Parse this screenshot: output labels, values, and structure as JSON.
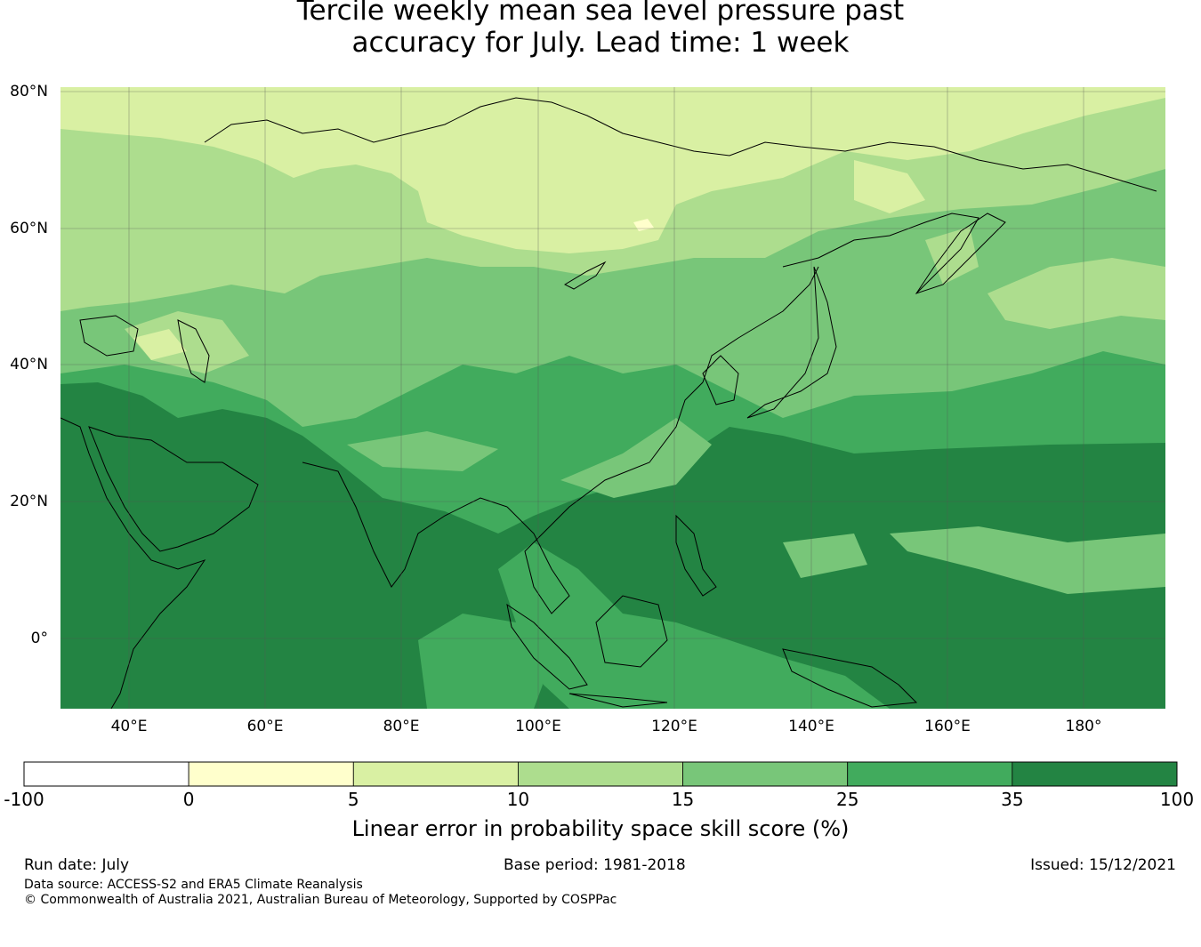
{
  "title": {
    "line1": "Tercile weekly mean sea level pressure past",
    "line2": "accuracy for July. Lead time: 1 week"
  },
  "map": {
    "lat_labels": [
      "80°N",
      "60°N",
      "40°N",
      "20°N",
      "0°"
    ],
    "lon_labels": [
      "40°E",
      "60°E",
      "80°E",
      "100°E",
      "120°E",
      "140°E",
      "160°E",
      "180°"
    ],
    "region": "Asia",
    "lon_range_deg": [
      30,
      192
    ],
    "lat_range_deg": [
      -10,
      80
    ]
  },
  "colorbar": {
    "title": "Linear error in probability space skill score (%)",
    "ticks": [
      "-100",
      "0",
      "5",
      "10",
      "15",
      "25",
      "35",
      "100"
    ],
    "bins": [
      {
        "from": -100,
        "to": 0,
        "color": "#ffffff"
      },
      {
        "from": 0,
        "to": 5,
        "color": "#ffffcc"
      },
      {
        "from": 5,
        "to": 10,
        "color": "#d9f0a3"
      },
      {
        "from": 10,
        "to": 15,
        "color": "#addd8e"
      },
      {
        "from": 15,
        "to": 25,
        "color": "#78c679"
      },
      {
        "from": 25,
        "to": 35,
        "color": "#41ab5d"
      },
      {
        "from": 35,
        "to": 100,
        "color": "#238443"
      }
    ]
  },
  "footer": {
    "run_date": "Run date: July",
    "base_period": "Base period: 1981-2018",
    "issued": "Issued: 15/12/2021",
    "data_source": "Data source: ACCESS-S2 and ERA5 Climate Reanalysis",
    "copyright": "© Commonwealth of Australia 2021, Australian Bureau of Meteorology, Supported by COSPPac"
  }
}
